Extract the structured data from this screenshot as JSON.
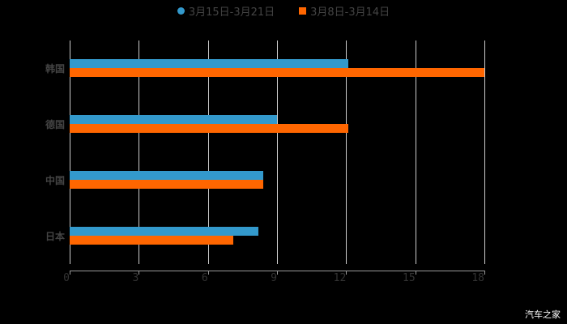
{
  "chart_data": {
    "type": "bar",
    "orientation": "horizontal",
    "categories": [
      "韩国",
      "德国",
      "中国",
      "日本"
    ],
    "series": [
      {
        "name": "3月15日-3月21日",
        "color": "#3399cc",
        "values": [
          12.1,
          9.0,
          8.4,
          8.2
        ]
      },
      {
        "name": "3月8日-3月14日",
        "color": "#ff6600",
        "values": [
          18.0,
          12.1,
          8.4,
          7.1
        ]
      }
    ],
    "title": "",
    "xlabel": "",
    "ylabel": "",
    "xlim": [
      0,
      18
    ],
    "xticks": [
      "0",
      "3",
      "6",
      "9",
      "12",
      "15",
      "18"
    ],
    "grid": true,
    "legend_position": "top"
  },
  "legend": {
    "series1": "3月15日-3月21日",
    "series2": "3月8日-3月14日"
  },
  "watermark": "汽车之家"
}
